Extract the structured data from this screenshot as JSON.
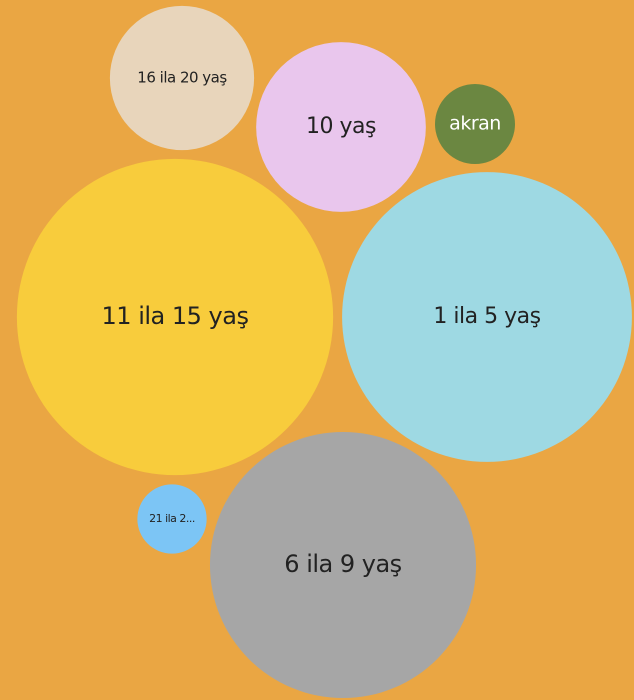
{
  "chart_data": {
    "type": "bubble",
    "categories": [
      "16 ila 20 yaş",
      "10 yaş",
      "akran",
      "11 ila 15 yaş",
      "1 ila 5 yaş",
      "21 ila 2...",
      "6 ila 9 yaş"
    ],
    "values": [
      52,
      72,
      16,
      250,
      210,
      12,
      177
    ],
    "colors": [
      "#e8d5bb",
      "#e9c6ed",
      "#6b8741",
      "#f8cc3c",
      "#9ed9e3",
      "#7cc5f5",
      "#a6a6a6"
    ]
  }
}
